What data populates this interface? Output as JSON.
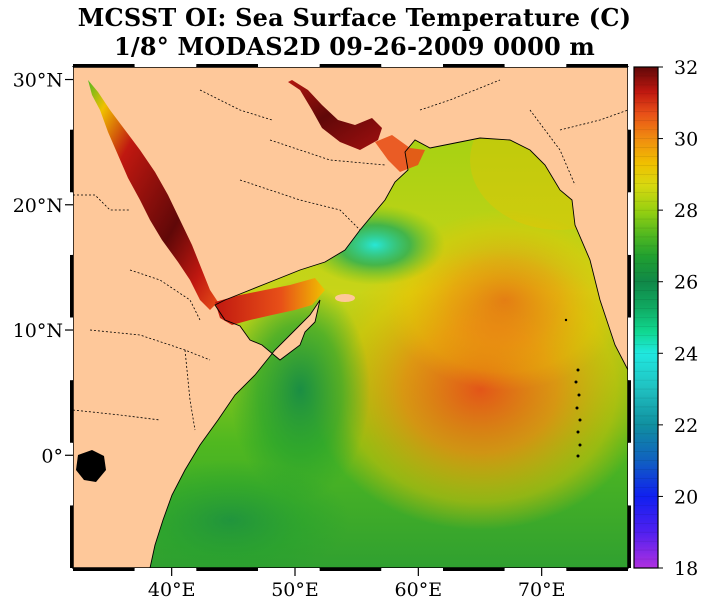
{
  "title": {
    "line1": "MCSST OI:  Sea Surface Temperature (C)",
    "line2": "1/8° MODAS2D 09-26-2009 0000 m"
  },
  "map": {
    "lon_range": [
      32,
      77
    ],
    "lat_range": [
      -9,
      31
    ],
    "x_ticks": [
      {
        "value": 40,
        "label": "40°E"
      },
      {
        "value": 50,
        "label": "50°E"
      },
      {
        "value": 60,
        "label": "60°E"
      },
      {
        "value": 70,
        "label": "70°E"
      }
    ],
    "y_ticks": [
      {
        "value": 30,
        "label": "30°N"
      },
      {
        "value": 20,
        "label": "20°N"
      },
      {
        "value": 10,
        "label": "10°N"
      },
      {
        "value": 0,
        "label": "0°"
      }
    ],
    "land_color": "#fec89a",
    "variable": "Sea Surface Temperature (C)"
  },
  "colorbar": {
    "min": 18,
    "max": 32,
    "ticks": [
      {
        "value": 32,
        "label": "32"
      },
      {
        "value": 30,
        "label": "30"
      },
      {
        "value": 28,
        "label": "28"
      },
      {
        "value": 26,
        "label": "26"
      },
      {
        "value": 24,
        "label": "24"
      },
      {
        "value": 22,
        "label": "22"
      },
      {
        "value": 20,
        "label": "20"
      },
      {
        "value": 18,
        "label": "18"
      }
    ],
    "stops": [
      {
        "value": 18,
        "color": "#b030e0"
      },
      {
        "value": 19,
        "color": "#5020f0"
      },
      {
        "value": 20,
        "color": "#1020f0"
      },
      {
        "value": 21,
        "color": "#1060c0"
      },
      {
        "value": 22,
        "color": "#1090a0"
      },
      {
        "value": 23,
        "color": "#20c0c0"
      },
      {
        "value": 24,
        "color": "#20e8e0"
      },
      {
        "value": 24.6,
        "color": "#10d890"
      },
      {
        "value": 25.3,
        "color": "#10a860"
      },
      {
        "value": 26,
        "color": "#108848"
      },
      {
        "value": 26.7,
        "color": "#20a030"
      },
      {
        "value": 27.3,
        "color": "#50b820"
      },
      {
        "value": 28,
        "color": "#98d010"
      },
      {
        "value": 28.7,
        "color": "#d8d810"
      },
      {
        "value": 29.3,
        "color": "#f0c000"
      },
      {
        "value": 30,
        "color": "#f08c10"
      },
      {
        "value": 30.7,
        "color": "#e85018"
      },
      {
        "value": 31.3,
        "color": "#c01810"
      },
      {
        "value": 32,
        "color": "#600808"
      }
    ]
  }
}
